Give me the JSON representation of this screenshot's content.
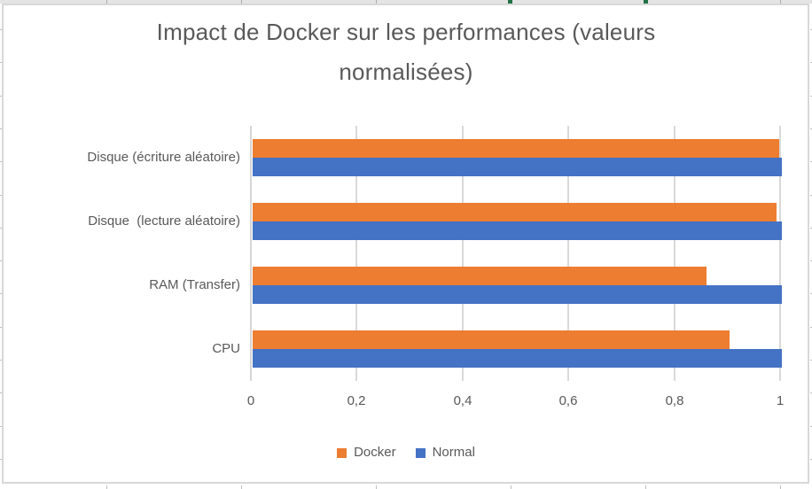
{
  "chart_data": {
    "type": "bar",
    "orientation": "horizontal",
    "title": "Impact de Docker sur les performances (valeurs normalisées)",
    "categories": [
      "Disque (écriture aléatoire)",
      "Disque  (lecture aléatoire)",
      "RAM (Transfer)",
      "CPU"
    ],
    "series": [
      {
        "name": "Docker",
        "color": "#ED7D31",
        "values": [
          0.995,
          0.99,
          0.857,
          0.902
        ]
      },
      {
        "name": "Normal",
        "color": "#4472C4",
        "values": [
          1,
          1,
          1,
          1
        ]
      }
    ],
    "xlim": [
      0,
      1
    ],
    "x_tick_labels": [
      "0",
      "0,2",
      "0,4",
      "0,6",
      "0,8",
      "1"
    ],
    "grid": "vertical-only",
    "legend_position": "bottom",
    "title_color": "#595959",
    "axis_text_color": "#595959",
    "gridline_color": "#D9D9D9",
    "chart_border_color": "#D8D8D8",
    "background": "#FFFFFF"
  }
}
